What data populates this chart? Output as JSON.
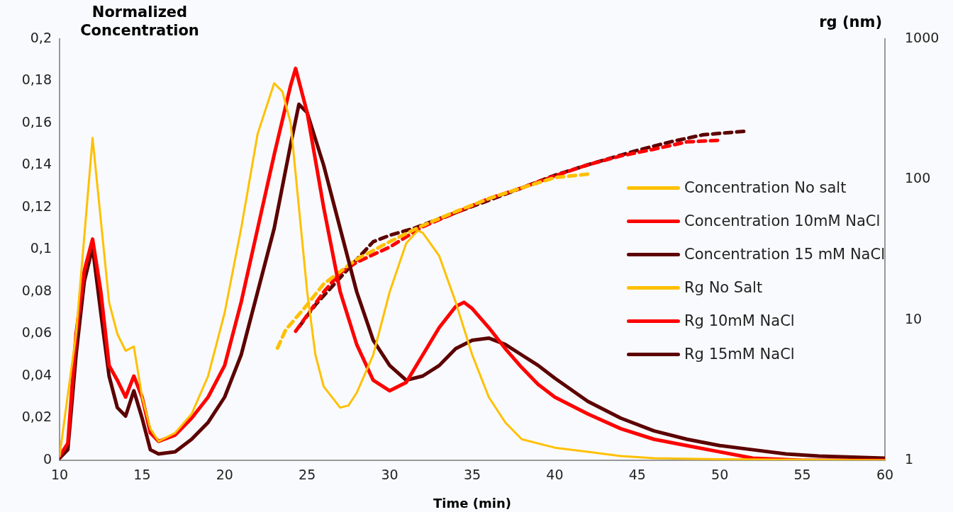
{
  "chart_data": {
    "type": "line",
    "ylabel": "Normalized Concentration",
    "y2label": "rg (nm)",
    "xlabel": "Time (min)",
    "xlim": [
      10,
      60
    ],
    "xticks": [
      10,
      15,
      20,
      25,
      30,
      35,
      40,
      45,
      50,
      55,
      60
    ],
    "ylim": [
      0,
      0.2
    ],
    "yticks": [
      {
        "value": 0,
        "label": "0"
      },
      {
        "value": 0.02,
        "label": "0,02"
      },
      {
        "value": 0.04,
        "label": "0,04"
      },
      {
        "value": 0.06,
        "label": "0,06"
      },
      {
        "value": 0.08,
        "label": "0,08"
      },
      {
        "value": 0.1,
        "label": "0,1"
      },
      {
        "value": 0.12,
        "label": "0,12"
      },
      {
        "value": 0.14,
        "label": "0,14"
      },
      {
        "value": 0.16,
        "label": "0,16"
      },
      {
        "value": 0.18,
        "label": "0,18"
      },
      {
        "value": 0.2,
        "label": "0,2"
      }
    ],
    "y2lim": [
      1,
      1000
    ],
    "y2ticks": [
      1,
      10,
      100,
      1000
    ],
    "log": "y2",
    "grid": false,
    "legend": "right",
    "marker": "none",
    "series": [
      {
        "name": "Concentration No salt",
        "color": "#ffc000",
        "line_style": "solid",
        "x": [
          10,
          11,
          12,
          13,
          13.5,
          14,
          14.5,
          15,
          15.5,
          16,
          17,
          18,
          19,
          20,
          21,
          22,
          23,
          23.5,
          24,
          24.5,
          25,
          25.5,
          26,
          27,
          27.5,
          28,
          29,
          30,
          31,
          31.7,
          32,
          33,
          34,
          35,
          36,
          37,
          38,
          40,
          42,
          44,
          46,
          50,
          60
        ],
        "values": [
          0.002,
          0.06,
          0.153,
          0.075,
          0.06,
          0.052,
          0.054,
          0.03,
          0.015,
          0.009,
          0.013,
          0.022,
          0.04,
          0.07,
          0.11,
          0.155,
          0.179,
          0.175,
          0.16,
          0.12,
          0.08,
          0.05,
          0.035,
          0.025,
          0.026,
          0.032,
          0.05,
          0.08,
          0.103,
          0.109,
          0.108,
          0.097,
          0.075,
          0.05,
          0.03,
          0.018,
          0.01,
          0.006,
          0.004,
          0.002,
          0.001,
          0.0005,
          0
        ]
      },
      {
        "name": "Concentration 10mM NaCl",
        "color": "#ff0000",
        "line_style": "solid",
        "x": [
          10,
          10.5,
          11,
          11.5,
          12,
          12.5,
          13,
          13.5,
          14,
          14.5,
          15,
          15.5,
          16,
          17,
          18,
          19,
          20,
          21,
          22,
          23,
          24,
          24.3,
          25,
          26,
          27,
          28,
          29,
          30,
          31,
          32,
          33,
          34,
          34.5,
          35,
          36,
          37,
          38,
          39,
          40,
          42,
          44,
          46,
          48,
          50,
          52,
          55,
          60
        ],
        "values": [
          0.002,
          0.008,
          0.06,
          0.09,
          0.105,
          0.08,
          0.045,
          0.038,
          0.03,
          0.04,
          0.03,
          0.013,
          0.009,
          0.012,
          0.02,
          0.03,
          0.045,
          0.075,
          0.11,
          0.145,
          0.178,
          0.186,
          0.165,
          0.12,
          0.08,
          0.055,
          0.038,
          0.033,
          0.037,
          0.05,
          0.063,
          0.073,
          0.075,
          0.072,
          0.063,
          0.053,
          0.044,
          0.036,
          0.03,
          0.022,
          0.015,
          0.01,
          0.007,
          0.004,
          0.001,
          0,
          0
        ]
      },
      {
        "name": "Concentration 15 mM NaCl",
        "color": "#5c0000",
        "line_style": "solid",
        "x": [
          10,
          10.5,
          11,
          11.5,
          12,
          12.5,
          13,
          13.5,
          14,
          14.5,
          15,
          15.5,
          16,
          17,
          18,
          19,
          20,
          21,
          22,
          23,
          24,
          24.5,
          25,
          26,
          27,
          28,
          29,
          30,
          31,
          32,
          33,
          34,
          35,
          36,
          37,
          38,
          39,
          40,
          42,
          44,
          46,
          48,
          50,
          52,
          54,
          56,
          60
        ],
        "values": [
          0.001,
          0.005,
          0.05,
          0.085,
          0.101,
          0.07,
          0.04,
          0.025,
          0.021,
          0.033,
          0.02,
          0.005,
          0.003,
          0.004,
          0.01,
          0.018,
          0.03,
          0.05,
          0.08,
          0.11,
          0.15,
          0.169,
          0.165,
          0.14,
          0.11,
          0.08,
          0.057,
          0.045,
          0.038,
          0.04,
          0.045,
          0.053,
          0.057,
          0.058,
          0.055,
          0.05,
          0.045,
          0.039,
          0.028,
          0.02,
          0.014,
          0.01,
          0.007,
          0.005,
          0.003,
          0.002,
          0.001
        ]
      },
      {
        "name": "Rg No Salt",
        "color": "#ffc000",
        "axis": "y2",
        "line_style": "dashed",
        "x": [
          23.2,
          23.7,
          24.8,
          26,
          28,
          30,
          32,
          34,
          36,
          38,
          40,
          42
        ],
        "values": [
          6.3,
          8.5,
          12,
          18,
          27,
          36,
          47,
          59,
          73,
          87,
          103,
          109
        ]
      },
      {
        "name": "Rg 10mM NaCl",
        "color": "#ff0000",
        "axis": "y2",
        "line_style": "dashed",
        "x": [
          24.3,
          25,
          26,
          27,
          28,
          30,
          32,
          34,
          36,
          38,
          40,
          42,
          44,
          46,
          48,
          50
        ],
        "values": [
          8.3,
          10.8,
          15.8,
          21.6,
          25.7,
          33,
          46,
          58,
          73,
          87,
          106,
          127,
          147,
          164,
          185,
          190
        ]
      },
      {
        "name": "Rg 15mM NaCl",
        "color": "#5c0000",
        "axis": "y2",
        "line_style": "dashed",
        "x": [
          24.5,
          25.5,
          27,
          29,
          30,
          31.5,
          34,
          36,
          38,
          40,
          42,
          45,
          47,
          49,
          51.5
        ],
        "values": [
          8.9,
          12.8,
          20,
          36,
          40,
          45,
          58,
          71,
          87,
          107,
          127,
          161,
          185,
          208,
          220
        ]
      }
    ]
  }
}
